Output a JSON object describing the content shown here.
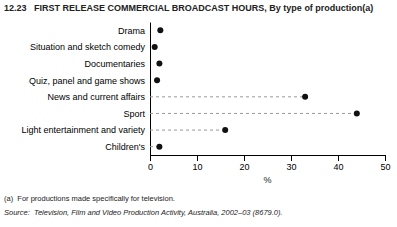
{
  "chart_data": {
    "type": "dot",
    "title": "12.23   FIRST RELEASE COMMERCIAL BROADCAST HOURS, By type of production(a)",
    "categories": [
      "Drama",
      "Situation and sketch comedy",
      "Documentaries",
      "Quiz, panel and game shows",
      "News and current affairs",
      "Sport",
      "Light entertainment and variety",
      "Children's"
    ],
    "series": [
      {
        "values": [
          2.2,
          1.0,
          2.0,
          1.5,
          null,
          null,
          null,
          null
        ],
        "marker": "circle",
        "line_style": "none"
      },
      {
        "values": [
          null,
          null,
          null,
          null,
          33.0,
          44.0,
          16.0,
          2.0
        ],
        "marker": "circle",
        "line_style": "dashed"
      }
    ],
    "color": "#111111",
    "orientation": "horizontal",
    "xlabel": "%",
    "xlim": [
      0,
      50
    ],
    "xticks": [
      0,
      10,
      20,
      30,
      40,
      50
    ],
    "annotations": [
      "(a)  For productions made specifically for television.",
      "Source:  Television, Film and Video Production Activity, Australia, 2002–03 (8679.0)."
    ]
  }
}
